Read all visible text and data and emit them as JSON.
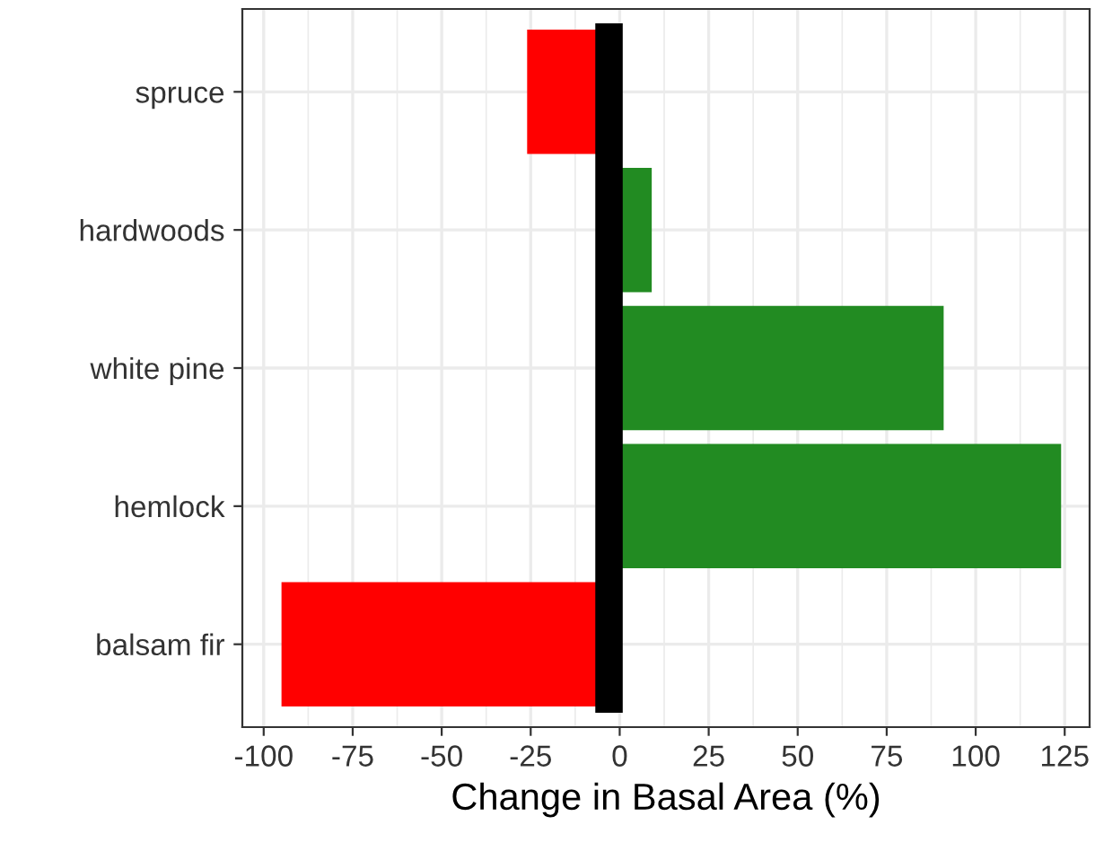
{
  "chart_data": {
    "type": "bar",
    "orientation": "horizontal",
    "xlabel": "Change in Basal Area (%)",
    "categories": [
      "spruce",
      "hardwoods",
      "white pine",
      "hemlock",
      "balsam fir"
    ],
    "values": [
      -26,
      9,
      91,
      124,
      -95
    ],
    "colors": [
      "#ff0000",
      "#228b22",
      "#228b22",
      "#228b22",
      "#ff0000"
    ],
    "xlim": [
      -106,
      132
    ],
    "xticks": [
      -100,
      -75,
      -50,
      -25,
      0,
      25,
      50,
      75,
      100,
      125
    ],
    "ref_lines": [
      {
        "axis": "x",
        "value": -3,
        "color": "#000000"
      }
    ],
    "grid": true
  }
}
